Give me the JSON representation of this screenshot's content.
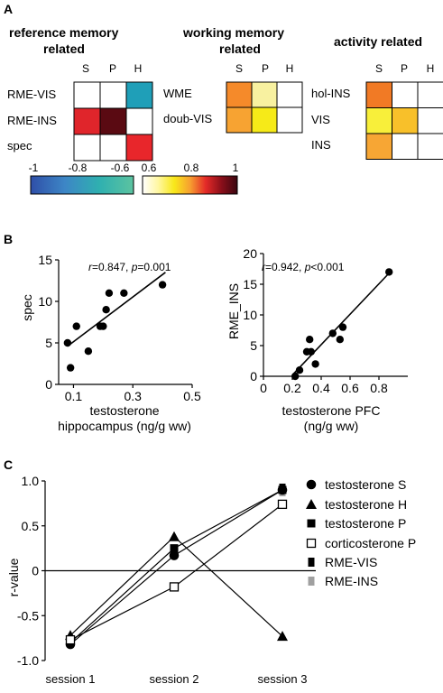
{
  "panel_a": {
    "letter": "A",
    "groups": [
      {
        "title_lines": [
          "reference memory",
          "related"
        ],
        "cols": [
          "S",
          "P",
          "H"
        ],
        "rows": [
          "RME-VIS",
          "RME-INS",
          "spec"
        ],
        "cells": [
          [
            "#ffffff",
            "#ffffff",
            "#1f9fb8"
          ],
          [
            "#e0252b",
            "#5a0a12",
            "#ffffff"
          ],
          [
            "#ffffff",
            "#ffffff",
            "#e8262b"
          ]
        ]
      },
      {
        "title_lines": [
          "working memory",
          "related"
        ],
        "cols": [
          "S",
          "P",
          "H"
        ],
        "rows": [
          "WME",
          "doub-VIS"
        ],
        "cells": [
          [
            "#f58a2a",
            "#f8f1a0",
            "#ffffff"
          ],
          [
            "#f7a332",
            "#f6ea18",
            "#ffffff"
          ]
        ]
      },
      {
        "title_lines": [
          "activity related"
        ],
        "cols": [
          "S",
          "P",
          "H"
        ],
        "rows": [
          "hol-INS",
          "VIS",
          "INS"
        ],
        "cells": [
          [
            "#f17a25",
            "#ffffff",
            "#ffffff"
          ],
          [
            "#f8ef3a",
            "#f8c02a",
            "#ffffff"
          ],
          [
            "#f7a634",
            "#ffffff",
            "#ffffff"
          ]
        ]
      }
    ],
    "colorbar": {
      "negative_ticks": [
        "-1",
        "-0.8",
        "-0.6"
      ],
      "positive_ticks": [
        "0.6",
        "0.8",
        "1"
      ],
      "negative_stops": [
        "#2f4fa8",
        "#3d86c6",
        "#2fb0b0",
        "#5cc3a0"
      ],
      "positive_stops": [
        "#ffffff",
        "#fff7a0",
        "#f8e81a",
        "#f7a030",
        "#e42a28",
        "#8a0f1a",
        "#3a0610"
      ]
    }
  },
  "chart_data": [
    {
      "type": "scatter",
      "panel": "B",
      "title": "",
      "annotation": {
        "r": "r",
        "r_val": "=0.847, ",
        "p": "p",
        "p_val": "=0.001"
      },
      "xlabel_lines": [
        "testosterone",
        "hippocampus (ng/g ww)"
      ],
      "ylabel": "spec",
      "xlim": [
        0.05,
        0.5
      ],
      "ylim": [
        0,
        15
      ],
      "xticks": [
        "0.1",
        "0.3",
        "0.5"
      ],
      "xtick_values": [
        0.1,
        0.3,
        0.5
      ],
      "yticks": [
        "0",
        "5",
        "10",
        "15"
      ],
      "ytick_values": [
        0,
        5,
        10,
        15
      ],
      "points": [
        [
          0.08,
          5
        ],
        [
          0.09,
          2
        ],
        [
          0.11,
          7
        ],
        [
          0.15,
          4
        ],
        [
          0.19,
          7
        ],
        [
          0.2,
          7
        ],
        [
          0.21,
          9
        ],
        [
          0.22,
          11
        ],
        [
          0.27,
          11
        ],
        [
          0.4,
          12
        ]
      ],
      "fit": [
        [
          0.08,
          4.6
        ],
        [
          0.41,
          13.5
        ]
      ]
    },
    {
      "type": "scatter",
      "panel": "B",
      "title": "",
      "annotation": {
        "r": "r",
        "r_val": "=0.942, ",
        "p": "p",
        "p_val": "<0.001"
      },
      "xlabel_lines": [
        "testosterone PFC",
        "(ng/g ww)"
      ],
      "ylabel": "RME_INS",
      "xlim": [
        0,
        1
      ],
      "ylim": [
        0,
        20
      ],
      "xticks": [
        "0",
        "0.2",
        "0.4",
        "0.6",
        "0.8"
      ],
      "xtick_values": [
        0,
        0.2,
        0.4,
        0.6,
        0.8
      ],
      "yticks": [
        "0",
        "5",
        "10",
        "15",
        "20"
      ],
      "ytick_values": [
        0,
        5,
        10,
        15,
        20
      ],
      "points": [
        [
          0.22,
          0
        ],
        [
          0.25,
          1
        ],
        [
          0.3,
          4
        ],
        [
          0.32,
          6
        ],
        [
          0.33,
          4
        ],
        [
          0.36,
          2
        ],
        [
          0.48,
          7
        ],
        [
          0.53,
          6
        ],
        [
          0.55,
          8
        ],
        [
          0.87,
          17
        ]
      ],
      "fit": [
        [
          0.2,
          0.2
        ],
        [
          0.87,
          16.8
        ]
      ]
    },
    {
      "type": "line",
      "panel": "C",
      "title": "",
      "ylabel": "r-value",
      "categories": [
        "session 1",
        "session 2",
        "session 3"
      ],
      "ylim": [
        -1.0,
        1.0
      ],
      "yticks": [
        "-1.0",
        "-0.5",
        "0",
        "0.5",
        "1.0"
      ],
      "ytick_values": [
        -1.0,
        -0.5,
        0,
        0.5,
        1.0
      ],
      "legend_position": "right",
      "series": [
        {
          "name": "testosterone S",
          "marker": "circle",
          "fill": "#000000",
          "values": [
            -0.82,
            0.17,
            0.9
          ]
        },
        {
          "name": "testosterone H",
          "marker": "triangle",
          "fill": "#000000",
          "values": [
            -0.72,
            0.38,
            -0.73
          ]
        },
        {
          "name": "testosterone P",
          "marker": "square",
          "fill": "#000000",
          "values": [
            -0.8,
            0.25,
            0.9
          ]
        },
        {
          "name": "corticosterone P",
          "marker": "square-open",
          "fill": "#ffffff",
          "values": [
            -0.77,
            -0.18,
            0.74
          ]
        },
        {
          "name": "RME-VIS",
          "marker": "bar",
          "fill": "#000000",
          "values": [
            null,
            0.22,
            0.92
          ]
        },
        {
          "name": "RME-INS",
          "marker": "bar",
          "fill": "#a0a0a0",
          "values": [
            null,
            null,
            0.88
          ]
        }
      ]
    }
  ],
  "panel_b": {
    "letter": "B"
  },
  "panel_c": {
    "letter": "C"
  }
}
